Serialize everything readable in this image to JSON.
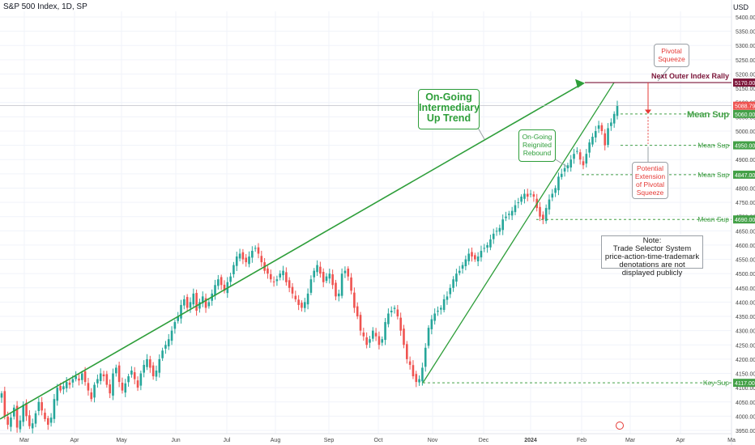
{
  "header": {
    "title": "S&P 500 Index, 1D, SP",
    "currency": "USD"
  },
  "colors": {
    "up": "#26a69a",
    "down": "#ef5350",
    "trend": "#2e9e3a",
    "annotation_red": "#e53935",
    "annotation_maroon": "#7b1438",
    "grid": "#f0f3fa"
  },
  "chart_data": {
    "type": "candlestick",
    "x": [
      "Mar",
      "Apr",
      "May",
      "Jun",
      "Jul",
      "Aug",
      "Sep",
      "Oct",
      "Nov",
      "Dec",
      "2024",
      "Feb",
      "Mar",
      "Apr",
      "Ma"
    ],
    "ylim": [
      3950,
      5460
    ],
    "y_ticks": [
      3950,
      4000,
      4050,
      4100,
      4150,
      4200,
      4250,
      4300,
      4350,
      4400,
      4450,
      4500,
      4550,
      4600,
      4650,
      4700,
      4750,
      4800,
      4850,
      4900,
      4950,
      5000,
      5050,
      5100,
      5150,
      5200,
      5250,
      5300,
      5350,
      5400
    ],
    "y_tick_labels": [
      "3950.00",
      "4000.00",
      "4050.00",
      "4100.00",
      "4150.00",
      "4200.00",
      "4250.00",
      "4300.00",
      "4350.00",
      "4400.00",
      "4450.00",
      "4500.00",
      "4550.00",
      "4600.00",
      "4650.00",
      "4700.00",
      "4750.00",
      "4800.00",
      "4850.00",
      "4900.00",
      "4950.00",
      "5000.00",
      "5050.00",
      "5100.00",
      "5150.00",
      "5200.00",
      "5250.00",
      "5300.00",
      "5350.00",
      "5400.00"
    ],
    "closes": [
      4080,
      4000,
      3970,
      3995,
      4030,
      3960,
      3985,
      4040,
      4000,
      3965,
      3975,
      4010,
      4050,
      4020,
      3990,
      3970,
      3995,
      4060,
      4100,
      4090,
      4105,
      4120,
      4110,
      4130,
      4140,
      4125,
      4150,
      4120,
      4090,
      4060,
      4110,
      4130,
      4150,
      4140,
      4110,
      4080,
      4150,
      4170,
      4120,
      4090,
      4115,
      4140,
      4160,
      4130,
      4100,
      4150,
      4180,
      4200,
      4170,
      4140,
      4160,
      4200,
      4230,
      4250,
      4270,
      4300,
      4330,
      4350,
      4390,
      4410,
      4380,
      4400,
      4430,
      4370,
      4400,
      4420,
      4380,
      4400,
      4430,
      4460,
      4480,
      4460,
      4440,
      4470,
      4490,
      4530,
      4560,
      4570,
      4550,
      4540,
      4560,
      4580,
      4590,
      4570,
      4540,
      4510,
      4500,
      4480,
      4470,
      4480,
      4500,
      4510,
      4470,
      4450,
      4430,
      4410,
      4390,
      4380,
      4400,
      4430,
      4480,
      4510,
      4530,
      4500,
      4470,
      4490,
      4500,
      4460,
      4420,
      4430,
      4500,
      4510,
      4490,
      4440,
      4380,
      4350,
      4300,
      4280,
      4250,
      4270,
      4300,
      4280,
      4250,
      4270,
      4330,
      4360,
      4370,
      4380,
      4350,
      4300,
      4250,
      4200,
      4180,
      4140,
      4120,
      4130,
      4170,
      4240,
      4310,
      4340,
      4360,
      4370,
      4380,
      4410,
      4420,
      4450,
      4480,
      4500,
      4510,
      4530,
      4550,
      4570,
      4560,
      4550,
      4560,
      4580,
      4590,
      4600,
      4620,
      4640,
      4650,
      4660,
      4690,
      4700,
      4710,
      4720,
      4740,
      4750,
      4770,
      4780,
      4770,
      4780,
      4770,
      4730,
      4700,
      4690,
      4730,
      4760,
      4780,
      4800,
      4840,
      4850,
      4870,
      4880,
      4900,
      4920,
      4930,
      4900,
      4880,
      4920,
      4960,
      4980,
      5000,
      5020,
      5000,
      4950,
      5010,
      5030,
      5060,
      5090
    ],
    "x_start_label": "Mar",
    "levels": [
      {
        "value": 5170,
        "label": "5170.00",
        "color": "#7b1438",
        "note": "Next Outer Index Rally"
      },
      {
        "value": 5060,
        "label": "5060.00",
        "color": "#43a047",
        "note": "Mean Sup"
      },
      {
        "value": 4950,
        "label": "4950.00",
        "color": "#43a047",
        "note": "Mean Sup"
      },
      {
        "value": 4847,
        "label": "4847.00",
        "color": "#43a047",
        "note": "Mean Sup"
      },
      {
        "value": 4690,
        "label": "4690.00",
        "color": "#43a047",
        "note": "Mean Sup"
      },
      {
        "value": 4117,
        "label": "4117.00",
        "color": "#43a047",
        "note": "Key Sup"
      }
    ],
    "last_price": {
      "value": 5088.79,
      "label": "5088.79"
    }
  },
  "annotations": {
    "trend_callout": [
      "On-Going",
      "Intermediary",
      "Up Trend"
    ],
    "rebound_callout": [
      "On-Going",
      "Reignited",
      "Rebound"
    ],
    "pivotal_callout": [
      "Pivotal",
      "Squeeze"
    ],
    "extension_callout": [
      "Potential",
      "Extension",
      "of Pivotal",
      "Squeeze"
    ],
    "note": [
      "Note:",
      "Trade Selector System",
      "price-action-time-trademark",
      "denotations are not displayed publicly"
    ]
  }
}
